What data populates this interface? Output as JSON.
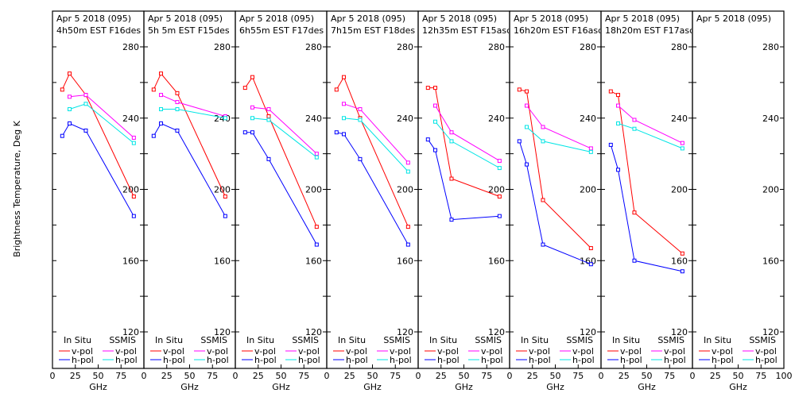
{
  "chart_data": {
    "type": "line",
    "ylabel": "Brightness Temperature, Deg K",
    "xlabel": "GHz",
    "xlim": [
      0,
      100
    ],
    "ylim": [
      120,
      280
    ],
    "x_ticks": [
      "0",
      "25",
      "50",
      "75",
      "100"
    ],
    "y_ticks": [
      "120",
      "160",
      "200",
      "240",
      "280"
    ],
    "legend": {
      "in_situ_label": "In Situ",
      "ssmis_label": "SSMIS",
      "entries": [
        {
          "group": "In Situ",
          "label": "v-pol",
          "color": "#ff0000"
        },
        {
          "group": "In Situ",
          "label": "h-pol",
          "color": "#0000ff"
        },
        {
          "group": "SSMIS",
          "label": "v-pol",
          "color": "#ff00ff"
        },
        {
          "group": "SSMIS",
          "label": "h-pol",
          "color": "#00e5e5"
        }
      ]
    },
    "panels": [
      {
        "title": "Apr 5 2018 (095)",
        "subtitle": "4h50m EST F16des",
        "insitu_x": [
          10.7,
          18.7,
          36.5,
          89
        ],
        "ssmis_x": [
          18.7,
          36.5,
          89
        ],
        "insitu_v": [
          256,
          265,
          253,
          196
        ],
        "insitu_h": [
          230,
          237,
          233,
          185
        ],
        "ssmis_v": [
          252,
          253,
          229
        ],
        "ssmis_h": [
          245,
          248,
          226
        ]
      },
      {
        "title": "Apr 5 2018 (095)",
        "subtitle": "5h 5m EST F15des",
        "insitu_x": [
          10.7,
          18.7,
          36.5,
          89
        ],
        "ssmis_x": [
          18.7,
          36.5,
          89
        ],
        "insitu_v": [
          256,
          265,
          254,
          196
        ],
        "insitu_h": [
          230,
          237,
          233,
          185
        ],
        "ssmis_v": [
          253,
          249,
          241
        ],
        "ssmis_h": [
          245,
          245,
          240
        ]
      },
      {
        "title": "Apr 5 2018 (095)",
        "subtitle": "6h55m EST F17des",
        "insitu_x": [
          10.7,
          18.7,
          36.5,
          89
        ],
        "ssmis_x": [
          18.7,
          36.5,
          89
        ],
        "insitu_v": [
          257,
          263,
          241,
          179
        ],
        "insitu_h": [
          232,
          232,
          217,
          169
        ],
        "ssmis_v": [
          246,
          245,
          220
        ],
        "ssmis_h": [
          240,
          239,
          218
        ]
      },
      {
        "title": "Apr 5 2018 (095)",
        "subtitle": "7h15m EST F18des",
        "insitu_x": [
          10.7,
          18.7,
          36.5,
          89
        ],
        "ssmis_x": [
          18.7,
          36.5,
          89
        ],
        "insitu_v": [
          256,
          263,
          240,
          179
        ],
        "insitu_h": [
          232,
          231,
          217,
          169
        ],
        "ssmis_v": [
          248,
          245,
          215
        ],
        "ssmis_h": [
          240,
          239,
          210
        ]
      },
      {
        "title": "Apr 5 2018 (095)",
        "subtitle": "12h35m EST F15asc",
        "insitu_x": [
          10.7,
          18.7,
          36.5,
          89
        ],
        "ssmis_x": [
          18.7,
          36.5,
          89
        ],
        "insitu_v": [
          257,
          257,
          206,
          196
        ],
        "insitu_h": [
          228,
          222,
          183,
          185
        ],
        "ssmis_v": [
          247,
          232,
          216
        ],
        "ssmis_h": [
          238,
          227,
          212
        ]
      },
      {
        "title": "Apr 5 2018 (095)",
        "subtitle": "16h20m EST F16asc",
        "insitu_x": [
          10.7,
          18.7,
          36.5,
          89
        ],
        "ssmis_x": [
          18.7,
          36.5,
          89
        ],
        "insitu_v": [
          256,
          255,
          194,
          167
        ],
        "insitu_h": [
          227,
          214,
          169,
          158
        ],
        "ssmis_v": [
          247,
          235,
          223
        ],
        "ssmis_h": [
          235,
          227,
          221
        ]
      },
      {
        "title": "Apr 5 2018 (095)",
        "subtitle": "18h20m EST F17asc",
        "insitu_x": [
          10.7,
          18.7,
          36.5,
          89
        ],
        "ssmis_x": [
          18.7,
          36.5,
          89
        ],
        "insitu_v": [
          255,
          253,
          187,
          164
        ],
        "insitu_h": [
          225,
          211,
          160,
          154
        ],
        "ssmis_v": [
          247,
          239,
          226
        ],
        "ssmis_h": [
          237,
          234,
          223
        ]
      },
      {
        "title": "Apr 5 2018 (095)",
        "subtitle": "",
        "insitu_x": [],
        "ssmis_x": [],
        "insitu_v": [],
        "insitu_h": [],
        "ssmis_v": [],
        "ssmis_h": []
      }
    ]
  }
}
